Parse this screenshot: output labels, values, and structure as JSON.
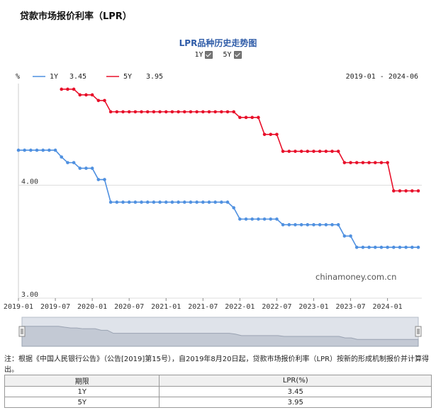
{
  "page": {
    "section_title": "贷款市场报价利率（LPR）",
    "chart_title": "LPR品种历史走势图",
    "toggles": [
      {
        "label": "1Y",
        "checked": true
      },
      {
        "label": "5Y",
        "checked": true
      }
    ],
    "watermark": "chinamoney.com.cn",
    "note": "注：根据《中国人民银行公告》（公告[2019]第15号），自2019年8月20日起，贷款市场报价利率（LPR）按新的形成机制报价并计算得出。",
    "table": {
      "headers": [
        "期限",
        "LPR(%)"
      ],
      "rows": [
        {
          "term": "1Y",
          "rate": "3.45"
        },
        {
          "term": "5Y",
          "rate": "3.95"
        }
      ]
    }
  },
  "chart_data": {
    "type": "line",
    "unit_label": "%",
    "date_range": "2019-01 - 2024-06",
    "ylim": [
      3.0,
      4.9
    ],
    "y_ticks": [
      "4.00",
      "3.00"
    ],
    "x_ticks": [
      "2019-01",
      "2019-07",
      "2020-01",
      "2020-07",
      "2021-01",
      "2021-07",
      "2022-01",
      "2022-07",
      "2023-01",
      "2023-07",
      "2024-01"
    ],
    "x_range": [
      "2019-01",
      "2024-06"
    ],
    "colors": {
      "1Y": "#4f90e0",
      "5Y": "#e8102a"
    },
    "series": [
      {
        "name": "1Y",
        "legend_value": "3.45",
        "points": [
          [
            "2019-01",
            4.31
          ],
          [
            "2019-02",
            4.31
          ],
          [
            "2019-03",
            4.31
          ],
          [
            "2019-04",
            4.31
          ],
          [
            "2019-05",
            4.31
          ],
          [
            "2019-06",
            4.31
          ],
          [
            "2019-07",
            4.31
          ],
          [
            "2019-08",
            4.25
          ],
          [
            "2019-09",
            4.2
          ],
          [
            "2019-10",
            4.2
          ],
          [
            "2019-11",
            4.15
          ],
          [
            "2019-12",
            4.15
          ],
          [
            "2020-01",
            4.15
          ],
          [
            "2020-02",
            4.05
          ],
          [
            "2020-03",
            4.05
          ],
          [
            "2020-04",
            3.85
          ],
          [
            "2020-05",
            3.85
          ],
          [
            "2020-06",
            3.85
          ],
          [
            "2020-07",
            3.85
          ],
          [
            "2020-08",
            3.85
          ],
          [
            "2020-09",
            3.85
          ],
          [
            "2020-10",
            3.85
          ],
          [
            "2020-11",
            3.85
          ],
          [
            "2020-12",
            3.85
          ],
          [
            "2021-01",
            3.85
          ],
          [
            "2021-02",
            3.85
          ],
          [
            "2021-03",
            3.85
          ],
          [
            "2021-04",
            3.85
          ],
          [
            "2021-05",
            3.85
          ],
          [
            "2021-06",
            3.85
          ],
          [
            "2021-07",
            3.85
          ],
          [
            "2021-08",
            3.85
          ],
          [
            "2021-09",
            3.85
          ],
          [
            "2021-10",
            3.85
          ],
          [
            "2021-11",
            3.85
          ],
          [
            "2021-12",
            3.8
          ],
          [
            "2022-01",
            3.7
          ],
          [
            "2022-02",
            3.7
          ],
          [
            "2022-03",
            3.7
          ],
          [
            "2022-04",
            3.7
          ],
          [
            "2022-05",
            3.7
          ],
          [
            "2022-06",
            3.7
          ],
          [
            "2022-07",
            3.7
          ],
          [
            "2022-08",
            3.65
          ],
          [
            "2022-09",
            3.65
          ],
          [
            "2022-10",
            3.65
          ],
          [
            "2022-11",
            3.65
          ],
          [
            "2022-12",
            3.65
          ],
          [
            "2023-01",
            3.65
          ],
          [
            "2023-02",
            3.65
          ],
          [
            "2023-03",
            3.65
          ],
          [
            "2023-04",
            3.65
          ],
          [
            "2023-05",
            3.65
          ],
          [
            "2023-06",
            3.55
          ],
          [
            "2023-07",
            3.55
          ],
          [
            "2023-08",
            3.45
          ],
          [
            "2023-09",
            3.45
          ],
          [
            "2023-10",
            3.45
          ],
          [
            "2023-11",
            3.45
          ],
          [
            "2023-12",
            3.45
          ],
          [
            "2024-01",
            3.45
          ],
          [
            "2024-02",
            3.45
          ],
          [
            "2024-03",
            3.45
          ],
          [
            "2024-04",
            3.45
          ],
          [
            "2024-05",
            3.45
          ],
          [
            "2024-06",
            3.45
          ]
        ]
      },
      {
        "name": "5Y",
        "legend_value": "3.95",
        "points": [
          [
            "2019-08",
            4.85
          ],
          [
            "2019-09",
            4.85
          ],
          [
            "2019-10",
            4.85
          ],
          [
            "2019-11",
            4.8
          ],
          [
            "2019-12",
            4.8
          ],
          [
            "2020-01",
            4.8
          ],
          [
            "2020-02",
            4.75
          ],
          [
            "2020-03",
            4.75
          ],
          [
            "2020-04",
            4.65
          ],
          [
            "2020-05",
            4.65
          ],
          [
            "2020-06",
            4.65
          ],
          [
            "2020-07",
            4.65
          ],
          [
            "2020-08",
            4.65
          ],
          [
            "2020-09",
            4.65
          ],
          [
            "2020-10",
            4.65
          ],
          [
            "2020-11",
            4.65
          ],
          [
            "2020-12",
            4.65
          ],
          [
            "2021-01",
            4.65
          ],
          [
            "2021-02",
            4.65
          ],
          [
            "2021-03",
            4.65
          ],
          [
            "2021-04",
            4.65
          ],
          [
            "2021-05",
            4.65
          ],
          [
            "2021-06",
            4.65
          ],
          [
            "2021-07",
            4.65
          ],
          [
            "2021-08",
            4.65
          ],
          [
            "2021-09",
            4.65
          ],
          [
            "2021-10",
            4.65
          ],
          [
            "2021-11",
            4.65
          ],
          [
            "2021-12",
            4.65
          ],
          [
            "2022-01",
            4.6
          ],
          [
            "2022-02",
            4.6
          ],
          [
            "2022-03",
            4.6
          ],
          [
            "2022-04",
            4.6
          ],
          [
            "2022-05",
            4.45
          ],
          [
            "2022-06",
            4.45
          ],
          [
            "2022-07",
            4.45
          ],
          [
            "2022-08",
            4.3
          ],
          [
            "2022-09",
            4.3
          ],
          [
            "2022-10",
            4.3
          ],
          [
            "2022-11",
            4.3
          ],
          [
            "2022-12",
            4.3
          ],
          [
            "2023-01",
            4.3
          ],
          [
            "2023-02",
            4.3
          ],
          [
            "2023-03",
            4.3
          ],
          [
            "2023-04",
            4.3
          ],
          [
            "2023-05",
            4.3
          ],
          [
            "2023-06",
            4.2
          ],
          [
            "2023-07",
            4.2
          ],
          [
            "2023-08",
            4.2
          ],
          [
            "2023-09",
            4.2
          ],
          [
            "2023-10",
            4.2
          ],
          [
            "2023-11",
            4.2
          ],
          [
            "2023-12",
            4.2
          ],
          [
            "2024-01",
            4.2
          ],
          [
            "2024-02",
            3.95
          ],
          [
            "2024-03",
            3.95
          ],
          [
            "2024-04",
            3.95
          ],
          [
            "2024-05",
            3.95
          ],
          [
            "2024-06",
            3.95
          ]
        ]
      }
    ]
  }
}
